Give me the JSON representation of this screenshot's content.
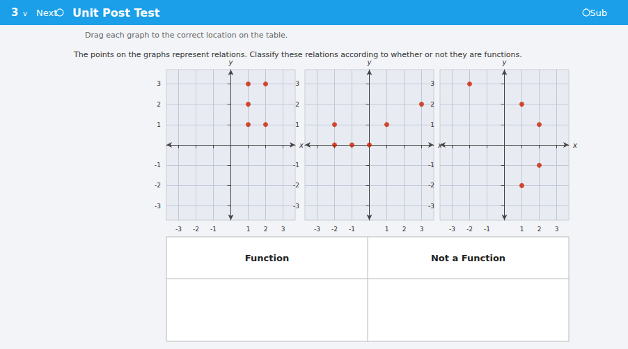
{
  "chart_data": [
    {
      "type": "scatter",
      "title": "Unit Post Test",
      "annotations": [
        "3",
        "v",
        "Next",
        "Sub",
        "Drag each graph to the correct location on the table.",
        "The points on the graphs represent relations. Classify these relations according to whether or not they are functions.",
        "Function",
        "Not a Function"
      ],
      "x": [
        1,
        2,
        1,
        1,
        2
      ],
      "values": [
        3,
        3,
        2,
        1,
        1
      ],
      "color": "#cc2200",
      "xlim": [
        -3.7,
        3.7
      ],
      "ylim": [
        -3.7,
        3.7
      ],
      "xticks": [
        -3,
        -2,
        -1,
        1,
        2,
        3
      ],
      "yticks": [
        -3,
        -2,
        -1,
        1,
        2,
        3
      ],
      "grid": true,
      "xlabel": "x",
      "ylabel": "y"
    },
    {
      "type": "scatter",
      "x": [
        -2,
        -2,
        -1,
        0,
        1,
        3
      ],
      "values": [
        1,
        0,
        0,
        0,
        1,
        2
      ],
      "color": "#cc2200",
      "xlim": [
        -3.7,
        3.7
      ],
      "ylim": [
        -3.7,
        3.7
      ],
      "xticks": [
        -3,
        -2,
        -1,
        1,
        2,
        3
      ],
      "yticks": [
        -3,
        -2,
        -1,
        1,
        2,
        3
      ],
      "grid": true,
      "xlabel": "x",
      "ylabel": "y"
    },
    {
      "type": "scatter",
      "x": [
        -2,
        1,
        2,
        2,
        1
      ],
      "values": [
        3,
        2,
        1,
        -1,
        -2
      ],
      "color": "#cc2200",
      "xlim": [
        -3.7,
        3.7
      ],
      "ylim": [
        -3.7,
        3.7
      ],
      "xticks": [
        -3,
        -2,
        -1,
        1,
        2,
        3
      ],
      "yticks": [
        -3,
        -2,
        -1,
        1,
        2,
        3
      ],
      "grid": true,
      "xlabel": "x",
      "ylabel": "y"
    }
  ]
}
